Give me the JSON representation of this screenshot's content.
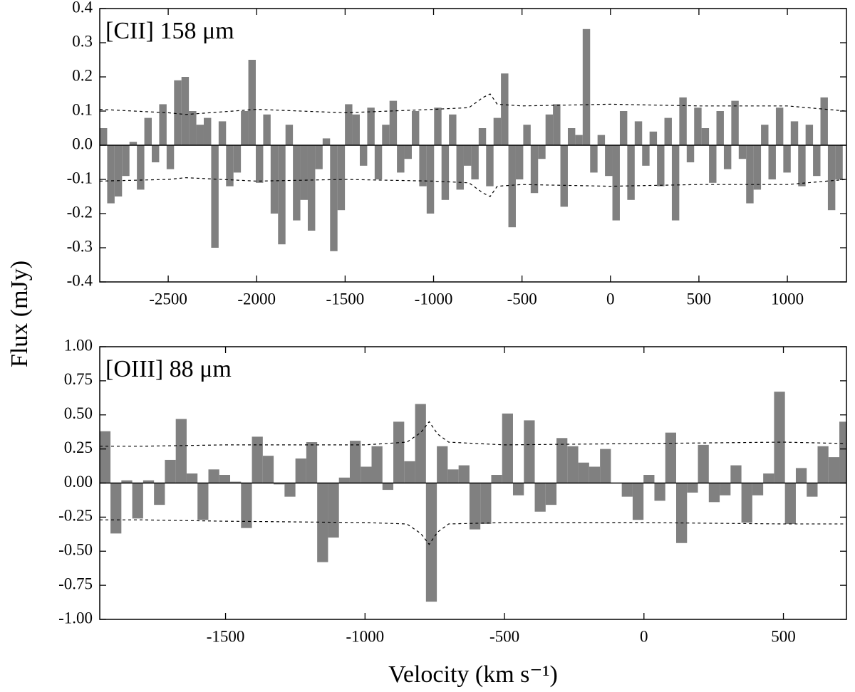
{
  "ylabel": "Flux (mJy)",
  "xlabel": "Velocity (km s⁻¹)",
  "chart_data": [
    {
      "type": "bar",
      "annotation": "[CII] 158 μm",
      "color": "#808080",
      "noise_color": "#000000",
      "xlim": [
        -2887,
        1334
      ],
      "ylim": [
        -0.4,
        0.4
      ],
      "xticks": [
        -2500,
        -2000,
        -1500,
        -1000,
        -500,
        0,
        500,
        1000
      ],
      "yticks": [
        0.4,
        0.3,
        0.2,
        0.1,
        {
          "value": 0,
          "label": "0.0"
        },
        -0.1,
        -0.2,
        -0.3,
        -0.4
      ],
      "x": [
        -2866,
        -2824,
        -2782,
        -2740,
        -2698,
        -2656,
        -2614,
        -2572,
        -2530,
        -2488,
        -2446,
        -2404,
        -2362,
        -2320,
        -2278,
        -2236,
        -2194,
        -2152,
        -2110,
        -2068,
        -2026,
        -1984,
        -1942,
        -1900,
        -1858,
        -1816,
        -1774,
        -1732,
        -1690,
        -1648,
        -1606,
        -1564,
        -1522,
        -1480,
        -1438,
        -1396,
        -1354,
        -1312,
        -1270,
        -1228,
        -1186,
        -1144,
        -1102,
        -1060,
        -1018,
        -976,
        -934,
        -892,
        -850,
        -808,
        -766,
        -724,
        -682,
        -640,
        -598,
        -556,
        -514,
        -472,
        -430,
        -388,
        -346,
        -304,
        -262,
        -220,
        -178,
        -136,
        -94,
        -52,
        -10,
        32,
        74,
        116,
        158,
        200,
        242,
        284,
        326,
        368,
        410,
        452,
        494,
        536,
        578,
        620,
        662,
        704,
        746,
        788,
        830,
        872,
        914,
        956,
        998,
        1040,
        1082,
        1124,
        1166,
        1208,
        1250,
        1292
      ],
      "values": [
        0.05,
        -0.17,
        -0.15,
        -0.09,
        0.01,
        -0.13,
        0.08,
        -0.05,
        0.12,
        -0.07,
        0.19,
        0.2,
        0.1,
        0.06,
        0.08,
        -0.3,
        0.07,
        -0.12,
        -0.08,
        0.1,
        0.25,
        -0.11,
        0.09,
        -0.2,
        -0.29,
        0.06,
        -0.22,
        -0.16,
        -0.25,
        -0.07,
        0.02,
        -0.31,
        -0.19,
        0.12,
        0.09,
        -0.06,
        0.11,
        -0.1,
        0.06,
        0.13,
        -0.08,
        -0.04,
        0.1,
        -0.12,
        -0.2,
        0.11,
        -0.16,
        0.09,
        -0.13,
        -0.06,
        -0.1,
        0.05,
        -0.12,
        0.08,
        0.21,
        -0.24,
        -0.1,
        0.06,
        -0.14,
        -0.04,
        0.09,
        0.12,
        -0.18,
        0.05,
        0.03,
        0.34,
        -0.08,
        0.03,
        -0.09,
        -0.22,
        0.1,
        -0.16,
        0.07,
        -0.06,
        0.04,
        -0.12,
        0.08,
        -0.22,
        0.14,
        -0.05,
        0.11,
        0.05,
        -0.11,
        0.1,
        -0.07,
        0.13,
        -0.04,
        -0.17,
        -0.13,
        0.06,
        -0.1,
        0.11,
        -0.08,
        0.07,
        -0.12,
        0.06,
        -0.09,
        0.14,
        -0.19,
        -0.1
      ],
      "noise": {
        "x": [
          -2887,
          -2500,
          -2400,
          -2000,
          -1500,
          -1000,
          -800,
          -720,
          -680,
          -640,
          -500,
          0,
          500,
          1000,
          1334
        ],
        "upper": [
          0.105,
          0.095,
          0.09,
          0.105,
          0.095,
          0.105,
          0.11,
          0.14,
          0.15,
          0.12,
          0.115,
          0.12,
          0.115,
          0.115,
          0.1
        ],
        "lower": [
          -0.105,
          -0.1,
          -0.095,
          -0.105,
          -0.1,
          -0.105,
          -0.11,
          -0.14,
          -0.15,
          -0.12,
          -0.115,
          -0.12,
          -0.115,
          -0.115,
          -0.1
        ]
      }
    },
    {
      "type": "bar",
      "annotation": "[OIII] 88 μm",
      "color": "#808080",
      "noise_color": "#000000",
      "xlim": [
        -1951,
        726
      ],
      "ylim": [
        -1,
        1
      ],
      "xticks": [
        -1500,
        -1000,
        -500,
        0,
        500
      ],
      "yticks": [
        {
          "value": 1,
          "label": "1.00"
        },
        0.75,
        {
          "value": 0.5,
          "label": "0.50"
        },
        0.25,
        {
          "value": 0,
          "label": "0.00"
        },
        -0.25,
        {
          "value": -0.5,
          "label": "-0.50"
        },
        -0.75,
        {
          "value": -1,
          "label": "-1.00"
        }
      ],
      "x": [
        -1932,
        -1893,
        -1854,
        -1815,
        -1776,
        -1737,
        -1698,
        -1659,
        -1620,
        -1581,
        -1542,
        -1503,
        -1464,
        -1425,
        -1386,
        -1347,
        -1308,
        -1269,
        -1230,
        -1191,
        -1152,
        -1113,
        -1074,
        -1035,
        -996,
        -957,
        -918,
        -879,
        -840,
        -801,
        -762,
        -723,
        -684,
        -645,
        -606,
        -567,
        -528,
        -489,
        -450,
        -411,
        -372,
        -333,
        -294,
        -255,
        -216,
        -177,
        -138,
        -99,
        -60,
        -21,
        18,
        57,
        96,
        135,
        174,
        213,
        252,
        291,
        330,
        369,
        408,
        447,
        486,
        525,
        564,
        603,
        642,
        681,
        720
      ],
      "values": [
        0.38,
        -0.37,
        0.02,
        -0.26,
        0.02,
        -0.16,
        0.17,
        0.47,
        0.07,
        -0.27,
        0.1,
        0.06,
        0.01,
        -0.33,
        0.34,
        0.2,
        -0.01,
        -0.1,
        0.18,
        0.3,
        -0.58,
        -0.4,
        0.04,
        0.31,
        0.12,
        0.27,
        -0.05,
        0.45,
        0.16,
        0.58,
        -0.87,
        0.27,
        0.1,
        0.13,
        -0.34,
        -0.3,
        0.06,
        0.51,
        -0.09,
        0.46,
        -0.21,
        -0.16,
        0.33,
        0.27,
        0.15,
        0.12,
        0.25,
        0,
        -0.1,
        -0.27,
        0.06,
        -0.13,
        0.37,
        -0.44,
        -0.07,
        0.28,
        -0.14,
        -0.09,
        0.13,
        -0.29,
        -0.09,
        0.07,
        0.67,
        -0.3,
        0.11,
        -0.1,
        0.27,
        0.19,
        0.45
      ],
      "noise": {
        "x": [
          -1951,
          -1800,
          -1500,
          -1000,
          -850,
          -800,
          -770,
          -740,
          -700,
          -500,
          0,
          500,
          726
        ],
        "upper": [
          0.27,
          0.27,
          0.28,
          0.28,
          0.3,
          0.37,
          0.45,
          0.36,
          0.3,
          0.28,
          0.29,
          0.3,
          0.29
        ],
        "lower": [
          -0.27,
          -0.27,
          -0.28,
          -0.29,
          -0.3,
          -0.37,
          -0.45,
          -0.36,
          -0.3,
          -0.29,
          -0.29,
          -0.3,
          -0.3
        ]
      }
    }
  ]
}
